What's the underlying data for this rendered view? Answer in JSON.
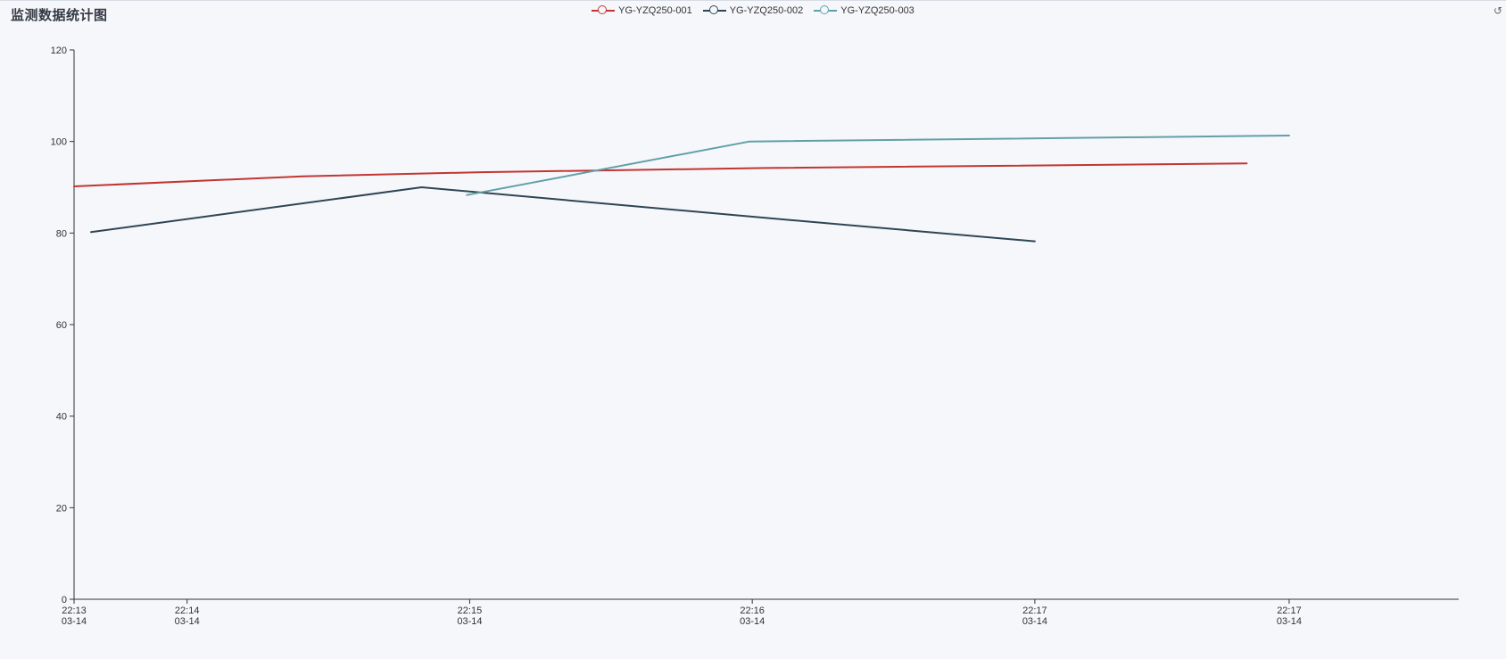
{
  "chart_data": {
    "type": "line",
    "title": "监测数据统计图",
    "xlabel": "",
    "ylabel": "",
    "ylim": [
      0,
      120
    ],
    "yticks": [
      "0",
      "20",
      "40",
      "60",
      "80",
      "100",
      "120"
    ],
    "xlim_minutes": [
      13,
      17.9
    ],
    "xticks": [
      {
        "minute": 13,
        "time": "22:13",
        "date": "03-14"
      },
      {
        "minute": 13.4,
        "time": "22:14",
        "date": "03-14"
      },
      {
        "minute": 14.4,
        "time": "22:15",
        "date": "03-14"
      },
      {
        "minute": 15.4,
        "time": "22:16",
        "date": "03-14"
      },
      {
        "minute": 16.4,
        "time": "22:17",
        "date": "03-14"
      },
      {
        "minute": 17.3,
        "time": "22:17",
        "date": "03-14"
      }
    ],
    "legend_position": "top-center",
    "grid": false,
    "series": [
      {
        "name": "YG-YZQ250-001",
        "color": "#c23531",
        "points": [
          {
            "x": 13.0,
            "y": 90.2
          },
          {
            "x": 13.81,
            "y": 92.4
          },
          {
            "x": 14.44,
            "y": 93.3
          },
          {
            "x": 15.45,
            "y": 94.2
          },
          {
            "x": 17.15,
            "y": 95.2
          }
        ]
      },
      {
        "name": "YG-YZQ250-002",
        "color": "#2f4554",
        "points": [
          {
            "x": 13.06,
            "y": 80.2
          },
          {
            "x": 14.23,
            "y": 90.0
          },
          {
            "x": 15.45,
            "y": 83.3
          },
          {
            "x": 16.4,
            "y": 78.2
          }
        ]
      },
      {
        "name": "YG-YZQ250-003",
        "color": "#61a0a8",
        "points": [
          {
            "x": 14.39,
            "y": 88.3
          },
          {
            "x": 15.39,
            "y": 100.0
          },
          {
            "x": 17.3,
            "y": 101.3
          }
        ]
      }
    ]
  },
  "toolbar": {
    "restore_icon": "restore-icon",
    "restore_glyph": "↺"
  }
}
